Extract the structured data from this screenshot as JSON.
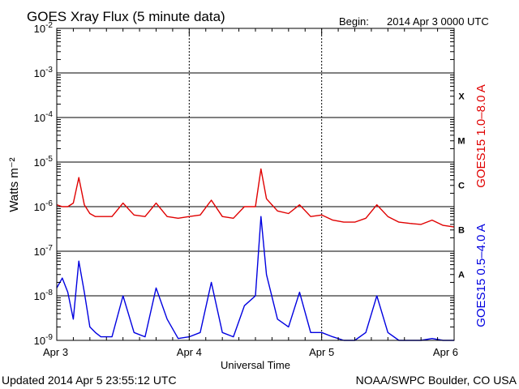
{
  "header": {
    "title": "GOES Xray Flux (5 minute data)",
    "begin_label": "Begin:",
    "begin_value": "2014 Apr 3 0000 UTC"
  },
  "footer": {
    "updated": "Updated 2014 Apr  5 23:55:12 UTC",
    "credit": "NOAA/SWPC Boulder, CO USA"
  },
  "colors": {
    "long_channel": "#e00000",
    "short_channel": "#0000e0",
    "axes": "#000000",
    "background": "#ffffff"
  },
  "chart_data": {
    "type": "line",
    "title": "GOES Xray Flux (5 minute data)",
    "xlabel": "Universal Time",
    "ylabel": "Watts m⁻²",
    "yscale": "log",
    "ylim": [
      1e-09,
      0.01
    ],
    "xlim": [
      "2014-04-03",
      "2014-04-06"
    ],
    "ytick_values": [
      1e-09,
      1e-08,
      1e-07,
      1e-06,
      1e-05,
      0.0001,
      0.001,
      0.01
    ],
    "ytick_labels": [
      {
        "base": "10",
        "exp": "-9"
      },
      {
        "base": "10",
        "exp": "-8"
      },
      {
        "base": "10",
        "exp": "-7"
      },
      {
        "base": "10",
        "exp": "-6"
      },
      {
        "base": "10",
        "exp": "-5"
      },
      {
        "base": "10",
        "exp": "-4"
      },
      {
        "base": "10",
        "exp": "-3"
      },
      {
        "base": "10",
        "exp": "-2"
      }
    ],
    "xtick_labels": [
      "Apr 3",
      "Apr 4",
      "Apr 5",
      "Apr 6"
    ],
    "flare_classes": [
      {
        "label": "A",
        "flux": 1e-08
      },
      {
        "label": "B",
        "flux": 1e-07
      },
      {
        "label": "C",
        "flux": 1e-06
      },
      {
        "label": "M",
        "flux": 1e-05
      },
      {
        "label": "X",
        "flux": 0.0001
      }
    ],
    "grid": true,
    "series": [
      {
        "name": "GOES15 1.0–8.0 A",
        "color": "#e00000",
        "x": [
          "2014-04-03 00:00",
          "2014-04-03 01:00",
          "2014-04-03 02:00",
          "2014-04-03 03:00",
          "2014-04-03 04:00",
          "2014-04-03 05:00",
          "2014-04-03 06:00",
          "2014-04-03 07:00",
          "2014-04-03 08:00",
          "2014-04-03 10:00",
          "2014-04-03 12:00",
          "2014-04-03 14:00",
          "2014-04-03 16:00",
          "2014-04-03 18:00",
          "2014-04-03 20:00",
          "2014-04-03 22:00",
          "2014-04-04 00:00",
          "2014-04-04 02:00",
          "2014-04-04 04:00",
          "2014-04-04 06:00",
          "2014-04-04 08:00",
          "2014-04-04 10:00",
          "2014-04-04 12:00",
          "2014-04-04 13:00",
          "2014-04-04 14:00",
          "2014-04-04 16:00",
          "2014-04-04 18:00",
          "2014-04-04 20:00",
          "2014-04-04 22:00",
          "2014-04-05 00:00",
          "2014-04-05 02:00",
          "2014-04-05 04:00",
          "2014-04-05 06:00",
          "2014-04-05 08:00",
          "2014-04-05 10:00",
          "2014-04-05 12:00",
          "2014-04-05 14:00",
          "2014-04-05 16:00",
          "2014-04-05 18:00",
          "2014-04-05 20:00",
          "2014-04-05 22:00",
          "2014-04-06 00:00"
        ],
        "values": [
          1.1e-06,
          1e-06,
          1e-06,
          1.2e-06,
          4.5e-06,
          1.1e-06,
          7e-07,
          6e-07,
          6e-07,
          6e-07,
          1.2e-06,
          6.5e-07,
          6e-07,
          1.2e-06,
          6e-07,
          5.5e-07,
          6e-07,
          6.5e-07,
          1.4e-06,
          6e-07,
          5.5e-07,
          1e-06,
          1e-06,
          7e-06,
          1.5e-06,
          8e-07,
          7e-07,
          1.1e-06,
          6e-07,
          6.5e-07,
          5e-07,
          4.5e-07,
          4.5e-07,
          5.5e-07,
          1.1e-06,
          6e-07,
          4.5e-07,
          4.2e-07,
          4e-07,
          5e-07,
          3.8e-07,
          3.5e-07
        ]
      },
      {
        "name": "GOES15 0.5–4.0 A",
        "color": "#0000e0",
        "x": [
          "2014-04-03 00:00",
          "2014-04-03 01:00",
          "2014-04-03 02:00",
          "2014-04-03 03:00",
          "2014-04-03 04:00",
          "2014-04-03 05:00",
          "2014-04-03 06:00",
          "2014-04-03 07:00",
          "2014-04-03 08:00",
          "2014-04-03 10:00",
          "2014-04-03 12:00",
          "2014-04-03 14:00",
          "2014-04-03 16:00",
          "2014-04-03 18:00",
          "2014-04-03 20:00",
          "2014-04-03 22:00",
          "2014-04-04 00:00",
          "2014-04-04 02:00",
          "2014-04-04 04:00",
          "2014-04-04 06:00",
          "2014-04-04 08:00",
          "2014-04-04 10:00",
          "2014-04-04 12:00",
          "2014-04-04 13:00",
          "2014-04-04 14:00",
          "2014-04-04 16:00",
          "2014-04-04 18:00",
          "2014-04-04 20:00",
          "2014-04-04 22:00",
          "2014-04-05 00:00",
          "2014-04-05 02:00",
          "2014-04-05 04:00",
          "2014-04-05 06:00",
          "2014-04-05 08:00",
          "2014-04-05 10:00",
          "2014-04-05 12:00",
          "2014-04-05 14:00",
          "2014-04-05 16:00",
          "2014-04-05 18:00",
          "2014-04-05 20:00",
          "2014-04-05 22:00",
          "2014-04-06 00:00"
        ],
        "values": [
          1.5e-08,
          2.5e-08,
          1.2e-08,
          3e-09,
          6e-08,
          1.2e-08,
          2e-09,
          1.5e-09,
          1.2e-09,
          1.2e-09,
          1e-08,
          1.5e-09,
          1.2e-09,
          1.5e-08,
          3e-09,
          1.1e-09,
          1.2e-09,
          1.5e-09,
          2e-08,
          1.5e-09,
          1.2e-09,
          6e-09,
          1e-08,
          6e-07,
          3e-08,
          3e-09,
          2e-09,
          1.2e-08,
          1.5e-09,
          1.5e-09,
          1.2e-09,
          1e-09,
          1e-09,
          1.5e-09,
          1e-08,
          1.5e-09,
          1e-09,
          1e-09,
          1e-09,
          1.1e-09,
          1e-09,
          1e-09
        ]
      }
    ]
  }
}
